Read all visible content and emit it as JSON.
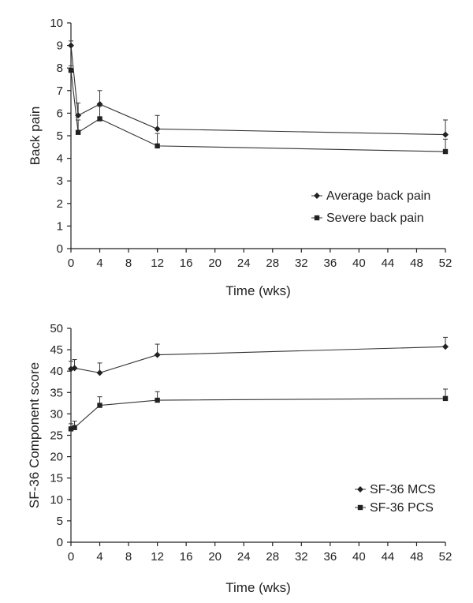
{
  "chart_data": [
    {
      "type": "line",
      "title": "",
      "xlabel": "Time (wks)",
      "ylabel": "Back pain",
      "xlim": [
        0,
        52
      ],
      "ylim": [
        0,
        10
      ],
      "xticks": [
        0,
        4,
        8,
        12,
        16,
        20,
        24,
        28,
        32,
        36,
        40,
        44,
        48,
        52
      ],
      "yticks": [
        0,
        1,
        2,
        3,
        4,
        5,
        6,
        7,
        8,
        9,
        10
      ],
      "legend_position": "right-middle",
      "grid": false,
      "series": [
        {
          "name": "Average back pain",
          "marker": "diamond",
          "x": [
            0,
            1,
            4,
            12,
            52
          ],
          "y": [
            9.0,
            5.9,
            6.4,
            5.3,
            5.05
          ],
          "error": [
            0.2,
            0.55,
            0.6,
            0.6,
            0.65
          ]
        },
        {
          "name": "Severe back pain",
          "marker": "square",
          "x": [
            0,
            1,
            4,
            12,
            52
          ],
          "y": [
            7.9,
            5.15,
            5.75,
            4.55,
            4.3
          ],
          "error": [
            0.2,
            0.55,
            0.55,
            0.55,
            0.55
          ]
        }
      ]
    },
    {
      "type": "line",
      "title": "",
      "xlabel": "Time (wks)",
      "ylabel": "SF-36 Component score",
      "xlim": [
        0,
        52
      ],
      "ylim": [
        0,
        50
      ],
      "xticks": [
        0,
        4,
        8,
        12,
        16,
        20,
        24,
        28,
        32,
        36,
        40,
        44,
        48,
        52
      ],
      "yticks": [
        0,
        5,
        10,
        15,
        20,
        25,
        30,
        35,
        40,
        45,
        50
      ],
      "legend_position": "right-middle",
      "grid": false,
      "series": [
        {
          "name": "SF-36 MCS",
          "marker": "diamond",
          "x": [
            0,
            0.5,
            4,
            12,
            52
          ],
          "y": [
            40.5,
            40.7,
            39.6,
            43.8,
            45.7
          ],
          "error": [
            1.8,
            2.0,
            2.3,
            2.5,
            2.2
          ]
        },
        {
          "name": "SF-36 PCS",
          "marker": "square",
          "x": [
            0,
            0.5,
            4,
            12,
            52
          ],
          "y": [
            26.5,
            26.8,
            32.0,
            33.2,
            33.6
          ],
          "error": [
            1.2,
            1.5,
            2.0,
            2.0,
            2.2
          ]
        }
      ]
    }
  ]
}
